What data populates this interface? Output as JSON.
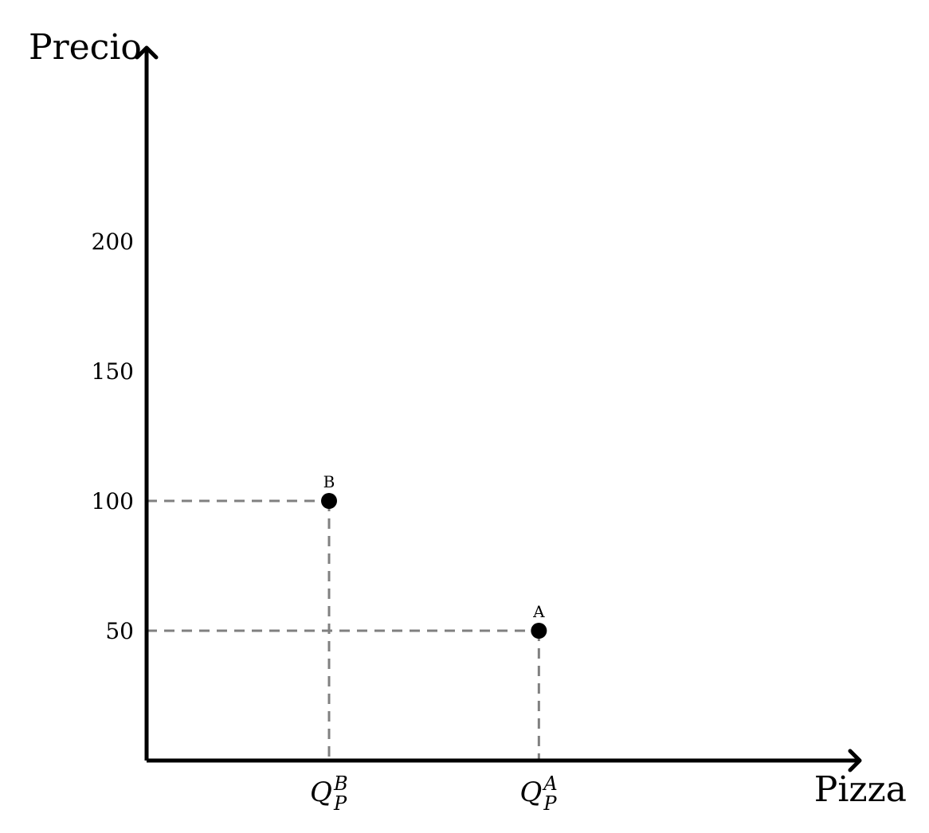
{
  "chart_data": {
    "type": "scatter",
    "ylabel": "Precio",
    "xlabel": "Pizza",
    "yticks": [
      50,
      100,
      150,
      200
    ],
    "ylim": [
      0,
      275
    ],
    "xlim": [
      0,
      4
    ],
    "grid": false,
    "points": [
      {
        "label": "B",
        "x": 1,
        "y": 100,
        "q_base": "Q",
        "q_sub": "P",
        "q_sup": "B"
      },
      {
        "label": "A",
        "x": 2.15,
        "y": 50,
        "q_base": "Q",
        "q_sub": "P",
        "q_sup": "A"
      }
    ],
    "colors": {
      "axis": "#000000",
      "guide": "#808080",
      "point": "#000000"
    }
  }
}
